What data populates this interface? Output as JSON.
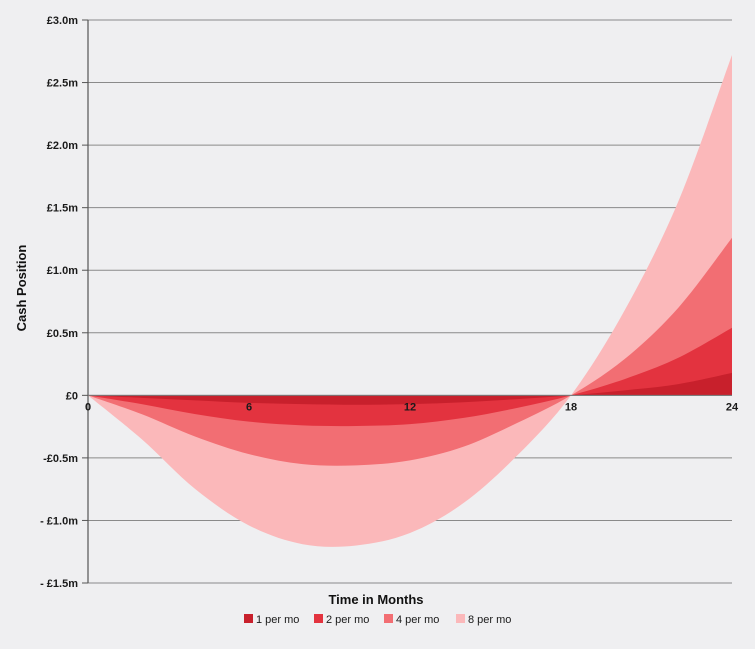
{
  "chart_data": {
    "type": "area",
    "title": "",
    "xlabel": "Time in Months",
    "ylabel": "Cash Position",
    "x_ticks": [
      {
        "value": 0,
        "label": "0"
      },
      {
        "value": 6,
        "label": "6"
      },
      {
        "value": 12,
        "label": "12"
      },
      {
        "value": 18,
        "label": "18"
      },
      {
        "value": 24,
        "label": "24"
      }
    ],
    "y_ticks": [
      {
        "value": 3.0,
        "label": "£3.0m"
      },
      {
        "value": 2.5,
        "label": "£2.5m"
      },
      {
        "value": 2.0,
        "label": "£2.0m"
      },
      {
        "value": 1.5,
        "label": "£1.5m"
      },
      {
        "value": 1.0,
        "label": "£1.0m"
      },
      {
        "value": 0.5,
        "label": "£0.5m"
      },
      {
        "value": 0,
        "label": "£0"
      },
      {
        "value": -0.5,
        "label": "-£0.5m"
      },
      {
        "value": -1.0,
        "label": "-  £1.0m"
      },
      {
        "value": -1.5,
        "label": "-  £1.5m"
      }
    ],
    "xlim": [
      0,
      24
    ],
    "ylim": [
      -1.5,
      3.0
    ],
    "grid": true,
    "legend_position": "bottom",
    "x": [
      0,
      2,
      4,
      6,
      8,
      10,
      12,
      14,
      16,
      18,
      20,
      22,
      24
    ],
    "series": [
      {
        "name": "1 per mo",
        "color": "#c8202c",
        "values": [
          0,
          -0.02,
          -0.04,
          -0.06,
          -0.07,
          -0.075,
          -0.07,
          -0.055,
          -0.03,
          0,
          0.04,
          0.09,
          0.18
        ]
      },
      {
        "name": "2 per mo",
        "color": "#e3333f",
        "values": [
          0,
          -0.07,
          -0.15,
          -0.21,
          -0.24,
          -0.245,
          -0.23,
          -0.18,
          -0.1,
          0,
          0.13,
          0.3,
          0.54
        ]
      },
      {
        "name": "4 per mo",
        "color": "#f26e73",
        "values": [
          0,
          -0.15,
          -0.33,
          -0.47,
          -0.55,
          -0.56,
          -0.52,
          -0.41,
          -0.22,
          0,
          0.29,
          0.7,
          1.26
        ]
      },
      {
        "name": "8 per mo",
        "color": "#fbb8ba",
        "values": [
          0,
          -0.35,
          -0.75,
          -1.04,
          -1.19,
          -1.2,
          -1.1,
          -0.86,
          -0.48,
          0,
          0.68,
          1.55,
          2.72
        ]
      }
    ]
  }
}
